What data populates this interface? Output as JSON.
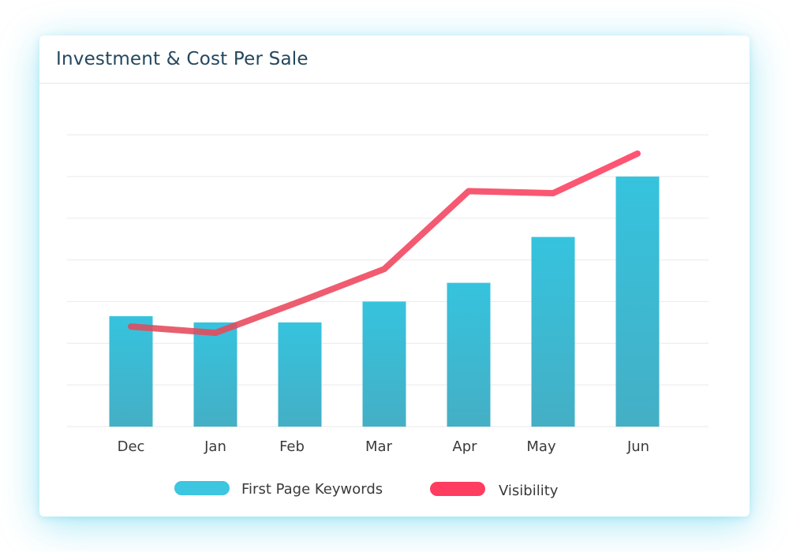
{
  "card": {
    "title": "Investment & Cost Per Sale"
  },
  "colors": {
    "bar_top": "#36c3de",
    "bar_bottom": "#44afc5",
    "line": "#e14b5a",
    "legend_bar": "#3cc6e0",
    "legend_line": "#ff3d60",
    "grid": "#e9e9e9"
  },
  "chart_data": {
    "type": "bar+line",
    "title": "Investment & Cost Per Sale",
    "categories": [
      "Dec",
      "Jan",
      "Feb",
      "Mar",
      "Apr",
      "May",
      "Jun"
    ],
    "ylim": [
      0,
      70
    ],
    "grid": true,
    "gridlines": 7,
    "series": [
      {
        "name": "First Page Keywords",
        "type": "bar",
        "values": [
          26.5,
          25,
          25,
          30,
          34.5,
          45.5,
          60
        ]
      },
      {
        "name": "Visibility",
        "type": "line",
        "values": [
          24,
          22.5,
          30,
          37.8,
          56.5,
          56,
          65.5
        ]
      }
    ],
    "legend": {
      "placement": "bottom",
      "items": [
        "First Page Keywords",
        "Visibility"
      ]
    }
  }
}
